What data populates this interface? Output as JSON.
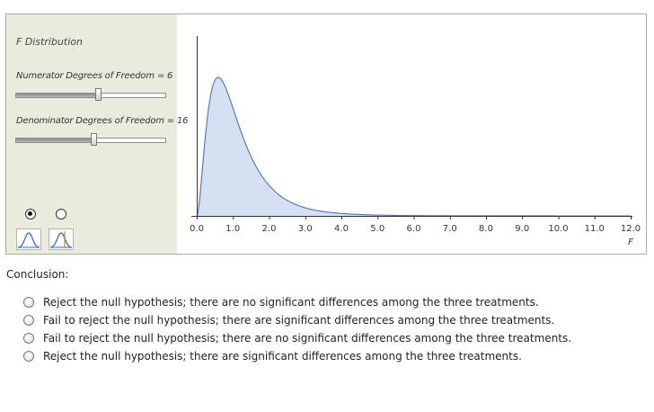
{
  "panel": {
    "title": "F Distribution",
    "numerator_label": "Numerator Degrees of Freedom = 6",
    "denominator_label": "Denominator Degrees of Freedom = 16",
    "numerator_slider": {
      "value": 6,
      "fraction": 0.55
    },
    "denominator_slider": {
      "value": 16,
      "fraction": 0.52
    },
    "view_toggle": {
      "selected": 0
    }
  },
  "chart_data": {
    "type": "area",
    "xlabel": "F",
    "xlim": [
      0,
      12
    ],
    "xticks": [
      "0.0",
      "1.0",
      "2.0",
      "3.0",
      "4.0",
      "5.0",
      "6.0",
      "7.0",
      "8.0",
      "9.0",
      "10.0",
      "11.0",
      "12.0"
    ],
    "df1": 6,
    "df2": 16,
    "line_color": "#4a72c0",
    "fill_color": "#d6e0f3"
  },
  "conclusion": {
    "label": "Conclusion:",
    "options": [
      "Reject the null hypothesis; there are no significant differences among the three treatments.",
      "Fail to reject the null hypothesis; there are significant differences among the three treatments.",
      "Fail to reject the null hypothesis; there are no significant differences among the three treatments.",
      "Reject the null hypothesis; there are significant differences among the three treatments."
    ]
  }
}
